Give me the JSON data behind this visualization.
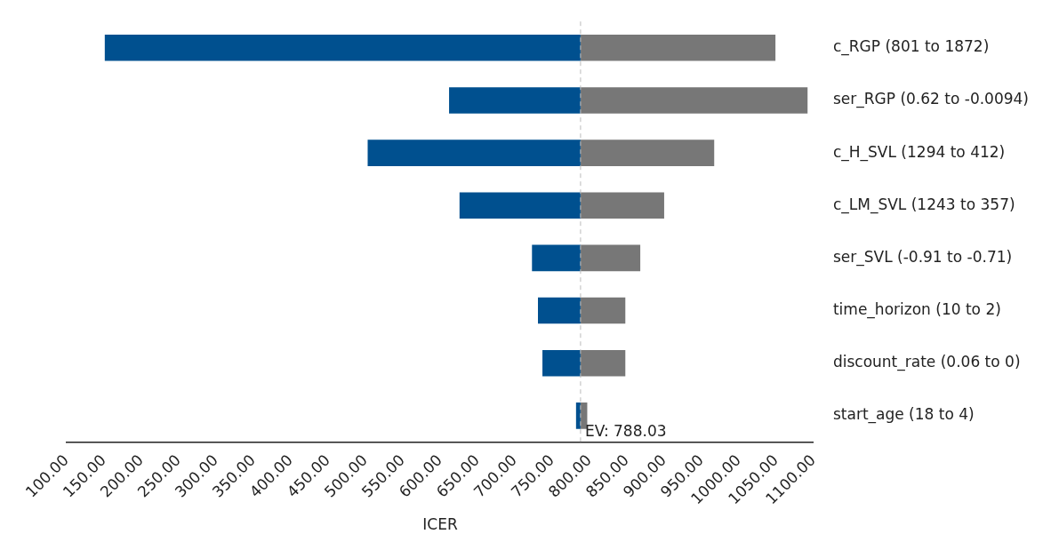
{
  "chart_data": {
    "type": "bar",
    "orientation": "horizontal",
    "xlabel": "ICER",
    "categories": [
      "c_RGP (801 to 1872)",
      "ser_RGP (0.62 to -0.0094)",
      "c_H_SVL (1294 to 412)",
      "c_LM_SVL (1243 to 357)",
      "ser_SVL (-0.91 to -0.71)",
      "time_horizon (10 to 2)",
      "discount_rate (0.06 to 0)",
      "start_age (18 to 4)"
    ],
    "series": [
      {
        "color": "#00508f",
        "base": [
          151,
          612,
          503,
          626,
          723,
          731,
          737,
          782
        ],
        "values": [
          637,
          176,
          285,
          162,
          65,
          57,
          51,
          6
        ]
      },
      {
        "color": "#777777",
        "base": [
          788,
          788,
          788,
          788,
          788,
          788,
          788,
          788
        ],
        "values": [
          261,
          304,
          179,
          112,
          80,
          60,
          60,
          9
        ]
      }
    ],
    "xlim": [
      100,
      1100
    ],
    "xticks": [
      {
        "value": 100,
        "label": "100.00"
      },
      {
        "value": 150,
        "label": "150.00"
      },
      {
        "value": 200,
        "label": "200.00"
      },
      {
        "value": 250,
        "label": "250.00"
      },
      {
        "value": 300,
        "label": "300.00"
      },
      {
        "value": 350,
        "label": "350.00"
      },
      {
        "value": 400,
        "label": "400.00"
      },
      {
        "value": 450,
        "label": "450.00"
      },
      {
        "value": 500,
        "label": "500.00"
      },
      {
        "value": 550,
        "label": "550.00"
      },
      {
        "value": 600,
        "label": "600.00"
      },
      {
        "value": 650,
        "label": "650.00"
      },
      {
        "value": 700,
        "label": "700.00"
      },
      {
        "value": 750,
        "label": "750.00"
      },
      {
        "value": 800,
        "label": "800.00"
      },
      {
        "value": 850,
        "label": "850.00"
      },
      {
        "value": 900,
        "label": "900.00"
      },
      {
        "value": 950,
        "label": "950.00"
      },
      {
        "value": 1000,
        "label": "1000.00"
      },
      {
        "value": 1050,
        "label": "1050.00"
      },
      {
        "value": 1100,
        "label": "1100.00"
      }
    ],
    "ref_lines": [
      {
        "axis": "x",
        "value": 788.03,
        "label": "EV: 788.03",
        "color": "#bbbbbb",
        "line_style": "dashed"
      }
    ],
    "grid": false,
    "legend": false
  }
}
